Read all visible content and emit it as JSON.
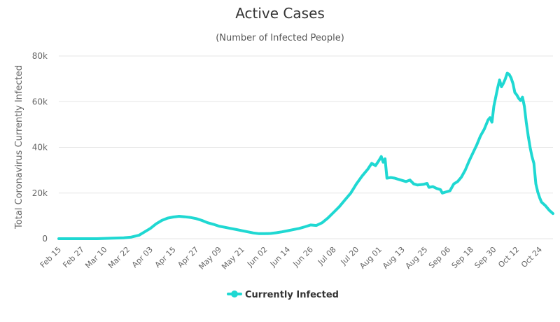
{
  "chart_data": {
    "type": "line",
    "title": "Active Cases",
    "subtitle": "(Number of Infected People)",
    "xlabel": "",
    "ylabel": "Total Coronavirus Currently Infected",
    "ylim": [
      0,
      80000
    ],
    "yticks": [
      {
        "value": 0,
        "label": "0"
      },
      {
        "value": 20000,
        "label": "20k"
      },
      {
        "value": 40000,
        "label": "40k"
      },
      {
        "value": 60000,
        "label": "60k"
      },
      {
        "value": 80000,
        "label": "80k"
      }
    ],
    "x_tick_labels": [
      "Feb 15",
      "Feb 27",
      "Mar 10",
      "Mar 22",
      "Apr 03",
      "Apr 15",
      "Apr 27",
      "May 09",
      "May 21",
      "Jun 02",
      "Jun 14",
      "Jun 26",
      "Jul 08",
      "Jul 20",
      "Aug 01",
      "Aug 13",
      "Aug 25",
      "Sep 06",
      "Sep 18",
      "Sep 30",
      "Oct 12",
      "Oct 24"
    ],
    "x_range_days": [
      0,
      259
    ],
    "x_tick_start_day": 0,
    "x_tick_step_days": 12,
    "grid": true,
    "legend_position": "bottom-center",
    "series": [
      {
        "name": "Currently Infected",
        "color": "#1fd8d2",
        "points": [
          [
            0,
            0
          ],
          [
            20,
            0
          ],
          [
            28,
            200
          ],
          [
            34,
            400
          ],
          [
            38,
            700
          ],
          [
            42,
            1500
          ],
          [
            45,
            3000
          ],
          [
            48,
            4500
          ],
          [
            51,
            6500
          ],
          [
            54,
            8000
          ],
          [
            57,
            9000
          ],
          [
            60,
            9500
          ],
          [
            63,
            9800
          ],
          [
            66,
            9600
          ],
          [
            69,
            9300
          ],
          [
            72,
            8800
          ],
          [
            75,
            8000
          ],
          [
            78,
            7000
          ],
          [
            81,
            6300
          ],
          [
            84,
            5500
          ],
          [
            87,
            5000
          ],
          [
            90,
            4500
          ],
          [
            93,
            4000
          ],
          [
            96,
            3500
          ],
          [
            99,
            3000
          ],
          [
            102,
            2500
          ],
          [
            105,
            2200
          ],
          [
            108,
            2200
          ],
          [
            111,
            2300
          ],
          [
            114,
            2600
          ],
          [
            117,
            3000
          ],
          [
            120,
            3500
          ],
          [
            123,
            4000
          ],
          [
            126,
            4500
          ],
          [
            129,
            5200
          ],
          [
            132,
            6000
          ],
          [
            135,
            5800
          ],
          [
            138,
            7000
          ],
          [
            141,
            9000
          ],
          [
            144,
            11500
          ],
          [
            147,
            14000
          ],
          [
            150,
            17000
          ],
          [
            153,
            20000
          ],
          [
            156,
            24000
          ],
          [
            159,
            27500
          ],
          [
            162,
            30500
          ],
          [
            164,
            33000
          ],
          [
            166,
            32000
          ],
          [
            168,
            34500
          ],
          [
            169,
            36000
          ],
          [
            170,
            33500
          ],
          [
            171,
            35000
          ],
          [
            172,
            26500
          ],
          [
            174,
            26800
          ],
          [
            176,
            26500
          ],
          [
            178,
            26000
          ],
          [
            180,
            25500
          ],
          [
            182,
            25000
          ],
          [
            184,
            25700
          ],
          [
            186,
            24000
          ],
          [
            188,
            23500
          ],
          [
            191,
            23800
          ],
          [
            193,
            24200
          ],
          [
            194,
            22500
          ],
          [
            196,
            22800
          ],
          [
            198,
            22000
          ],
          [
            200,
            21500
          ],
          [
            201,
            20000
          ],
          [
            203,
            20500
          ],
          [
            205,
            21000
          ],
          [
            207,
            24000
          ],
          [
            209,
            25000
          ],
          [
            211,
            27000
          ],
          [
            213,
            30000
          ],
          [
            215,
            34000
          ],
          [
            217,
            37500
          ],
          [
            219,
            41000
          ],
          [
            221,
            45000
          ],
          [
            223,
            48000
          ],
          [
            225,
            52000
          ],
          [
            226,
            53000
          ],
          [
            227,
            51000
          ],
          [
            228,
            58000
          ],
          [
            229,
            62000
          ],
          [
            230,
            66000
          ],
          [
            231,
            69500
          ],
          [
            232,
            66500
          ],
          [
            233,
            68000
          ],
          [
            234,
            70000
          ],
          [
            235,
            72500
          ],
          [
            236,
            72000
          ],
          [
            237,
            70500
          ],
          [
            238,
            68000
          ],
          [
            239,
            64000
          ],
          [
            240,
            63000
          ],
          [
            241,
            61500
          ],
          [
            242,
            60500
          ],
          [
            243,
            62000
          ],
          [
            244,
            58000
          ],
          [
            245,
            51000
          ],
          [
            246,
            45000
          ],
          [
            247,
            40000
          ],
          [
            248,
            36000
          ],
          [
            249,
            33000
          ],
          [
            250,
            24000
          ],
          [
            251,
            20500
          ],
          [
            252,
            18000
          ],
          [
            253,
            16000
          ],
          [
            255,
            14500
          ],
          [
            257,
            12500
          ],
          [
            259,
            11000
          ]
        ]
      }
    ]
  }
}
